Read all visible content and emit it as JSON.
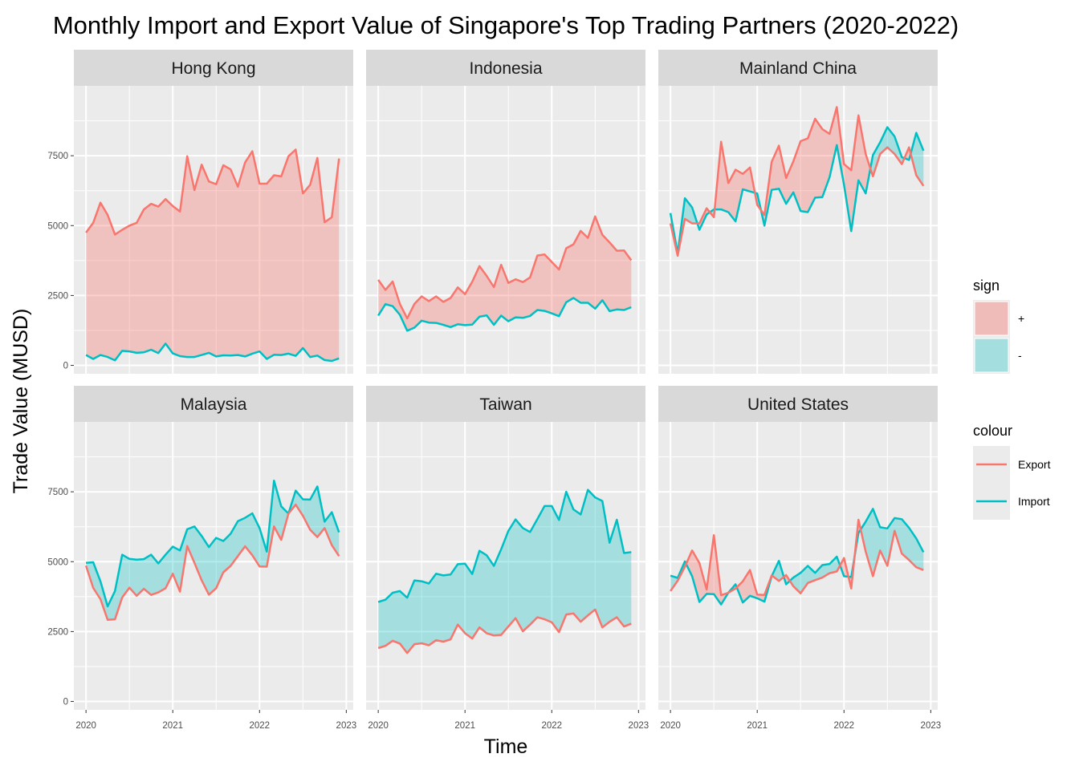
{
  "chart_data": {
    "type": "area",
    "title": "Monthly Import and Export Value of Singapore's Top Trading Partners (2020-2022)",
    "xlabel": "Time",
    "ylabel": "Trade Value (MUSD)",
    "x_start": "2020-01",
    "x_frequency": "monthly",
    "x_ticks": [
      "2020",
      "2021",
      "2022",
      "2023"
    ],
    "y_ticks": [
      0,
      2500,
      5000,
      7500
    ],
    "ylim": [
      -300,
      10000
    ],
    "grid": true,
    "legend_position": "right",
    "colors": {
      "export": "#F8766D",
      "import": "#00BFC4"
    },
    "legends": {
      "sign": {
        "title": "sign",
        "items": [
          "+",
          "-"
        ]
      },
      "colour": {
        "title": "colour",
        "items": [
          "Export",
          "Import"
        ]
      }
    },
    "facets": [
      {
        "name": "Hong Kong",
        "export": [
          4750,
          5100,
          5820,
          5380,
          4680,
          4850,
          5000,
          5100,
          5580,
          5780,
          5680,
          5950,
          5700,
          5500,
          7480,
          6270,
          7180,
          6580,
          6480,
          7160,
          7010,
          6390,
          7260,
          7660,
          6500,
          6500,
          6800,
          6760,
          7480,
          7720,
          6150,
          6460,
          7420,
          5120,
          5300,
          7400
        ],
        "import": [
          370,
          230,
          370,
          300,
          180,
          520,
          500,
          450,
          470,
          560,
          440,
          780,
          430,
          330,
          300,
          300,
          370,
          450,
          320,
          360,
          350,
          370,
          320,
          420,
          500,
          230,
          380,
          370,
          420,
          340,
          620,
          300,
          350,
          190,
          160,
          250
        ]
      },
      {
        "name": "Indonesia",
        "export": [
          3060,
          2700,
          3000,
          2200,
          1680,
          2200,
          2470,
          2300,
          2470,
          2270,
          2410,
          2790,
          2550,
          2990,
          3550,
          3200,
          2800,
          3600,
          2950,
          3080,
          2980,
          3150,
          3930,
          3970,
          3700,
          3430,
          4190,
          4330,
          4810,
          4560,
          5330,
          4670,
          4400,
          4100,
          4110,
          3760
        ],
        "import": [
          1780,
          2190,
          2120,
          1810,
          1240,
          1350,
          1600,
          1530,
          1520,
          1450,
          1370,
          1470,
          1440,
          1460,
          1740,
          1790,
          1450,
          1780,
          1580,
          1720,
          1700,
          1770,
          1980,
          1950,
          1860,
          1760,
          2260,
          2410,
          2240,
          2240,
          2030,
          2330,
          1940,
          2000,
          1980,
          2080
        ]
      },
      {
        "name": "Mainland China",
        "export": [
          5080,
          3920,
          5240,
          5080,
          5080,
          5620,
          5300,
          8000,
          6520,
          7000,
          6850,
          7080,
          5740,
          5380,
          7280,
          7860,
          6700,
          7300,
          8020,
          8120,
          8820,
          8450,
          8280,
          9240,
          7200,
          6980,
          8940,
          7560,
          6760,
          7560,
          7800,
          7560,
          7200,
          7800,
          6800,
          6420
        ],
        "import": [
          5450,
          4000,
          5980,
          5650,
          4850,
          5400,
          5580,
          5580,
          5480,
          5150,
          6300,
          6220,
          6150,
          5000,
          6280,
          6320,
          5780,
          6190,
          5520,
          5480,
          6000,
          6020,
          6730,
          7880,
          6460,
          4800,
          6620,
          6150,
          7520,
          7980,
          8520,
          8190,
          7450,
          7350,
          8320,
          7680
        ]
      },
      {
        "name": "Malaysia",
        "export": [
          4860,
          4060,
          3660,
          2920,
          2940,
          3720,
          4070,
          3780,
          4030,
          3810,
          3900,
          4050,
          4570,
          3930,
          5560,
          4960,
          4330,
          3820,
          4050,
          4620,
          4850,
          5200,
          5550,
          5230,
          4830,
          4820,
          6260,
          5780,
          6720,
          7040,
          6640,
          6140,
          5880,
          6200,
          5590,
          5200
        ],
        "import": [
          4960,
          4980,
          4300,
          3400,
          3950,
          5250,
          5100,
          5070,
          5090,
          5250,
          4940,
          5250,
          5540,
          5400,
          6160,
          6260,
          5920,
          5520,
          5850,
          5740,
          6000,
          6450,
          6570,
          6730,
          6200,
          5360,
          7900,
          6980,
          6720,
          7540,
          7230,
          7220,
          7690,
          6430,
          6770,
          6050
        ]
      },
      {
        "name": "Taiwan",
        "export": [
          1910,
          1990,
          2170,
          2070,
          1730,
          2050,
          2080,
          2010,
          2190,
          2140,
          2220,
          2750,
          2440,
          2250,
          2650,
          2440,
          2360,
          2380,
          2680,
          2980,
          2510,
          2750,
          3010,
          2940,
          2830,
          2480,
          3110,
          3150,
          2850,
          3080,
          3290,
          2650,
          2850,
          3010,
          2680,
          2780
        ],
        "import": [
          3560,
          3640,
          3890,
          3950,
          3710,
          4330,
          4300,
          4220,
          4570,
          4510,
          4540,
          4910,
          4930,
          4560,
          5390,
          5230,
          4850,
          5440,
          6100,
          6510,
          6200,
          6060,
          6520,
          6990,
          6990,
          6490,
          7500,
          6870,
          6690,
          7570,
          7300,
          7170,
          5680,
          6500,
          5310,
          5340
        ]
      },
      {
        "name": "United States",
        "export": [
          3950,
          4320,
          4820,
          5400,
          4950,
          4000,
          5950,
          3800,
          3890,
          4040,
          4300,
          4700,
          3820,
          3810,
          4510,
          4310,
          4520,
          4120,
          3870,
          4240,
          4340,
          4430,
          4590,
          4650,
          5130,
          4040,
          6500,
          5360,
          4480,
          5400,
          4850,
          6100,
          5290,
          5060,
          4800,
          4700
        ],
        "import": [
          4500,
          4420,
          5010,
          4480,
          3560,
          3850,
          3840,
          3470,
          3890,
          4190,
          3540,
          3780,
          3690,
          3570,
          4480,
          5030,
          4190,
          4430,
          4600,
          4850,
          4600,
          4880,
          4920,
          5180,
          4480,
          4450,
          6030,
          6430,
          6890,
          6230,
          6190,
          6560,
          6520,
          6210,
          5830,
          5340
        ]
      }
    ]
  }
}
